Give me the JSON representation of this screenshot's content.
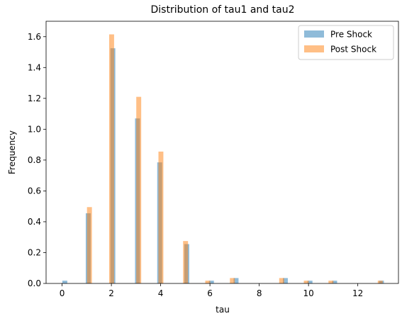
{
  "chart_data": {
    "type": "bar",
    "title": "Distribution of tau1 and tau2",
    "xlabel": "tau",
    "ylabel": "Frequency",
    "xlim": [
      -0.65,
      13.65
    ],
    "ylim": [
      0,
      1.7
    ],
    "xticks": [
      0,
      2,
      4,
      6,
      8,
      10,
      12
    ],
    "yticks": [
      0.0,
      0.2,
      0.4,
      0.6,
      0.8,
      1.0,
      1.2,
      1.4,
      1.6
    ],
    "bin_width": 0.2,
    "grid": false,
    "legend_position": "top-right",
    "series": [
      {
        "name": "Pre Shock",
        "color": "#1f77b4",
        "points": [
          {
            "x": 0.11,
            "y": 0.018
          },
          {
            "x": 1.06,
            "y": 0.455
          },
          {
            "x": 2.06,
            "y": 1.525
          },
          {
            "x": 3.06,
            "y": 1.07
          },
          {
            "x": 3.96,
            "y": 0.785
          },
          {
            "x": 5.06,
            "y": 0.255
          },
          {
            "x": 6.06,
            "y": 0.018
          },
          {
            "x": 7.06,
            "y": 0.035
          },
          {
            "x": 9.06,
            "y": 0.035
          },
          {
            "x": 10.06,
            "y": 0.018
          },
          {
            "x": 11.06,
            "y": 0.018
          },
          {
            "x": 12.96,
            "y": 0.018
          }
        ]
      },
      {
        "name": "Post Shock",
        "color": "#ff7f0e",
        "points": [
          {
            "x": 1.11,
            "y": 0.495
          },
          {
            "x": 2.01,
            "y": 1.615
          },
          {
            "x": 3.11,
            "y": 1.21
          },
          {
            "x": 4.01,
            "y": 0.855
          },
          {
            "x": 5.01,
            "y": 0.275
          },
          {
            "x": 5.91,
            "y": 0.018
          },
          {
            "x": 6.91,
            "y": 0.035
          },
          {
            "x": 8.91,
            "y": 0.035
          },
          {
            "x": 9.91,
            "y": 0.018
          },
          {
            "x": 10.91,
            "y": 0.018
          },
          {
            "x": 12.91,
            "y": 0.018
          }
        ]
      }
    ]
  }
}
